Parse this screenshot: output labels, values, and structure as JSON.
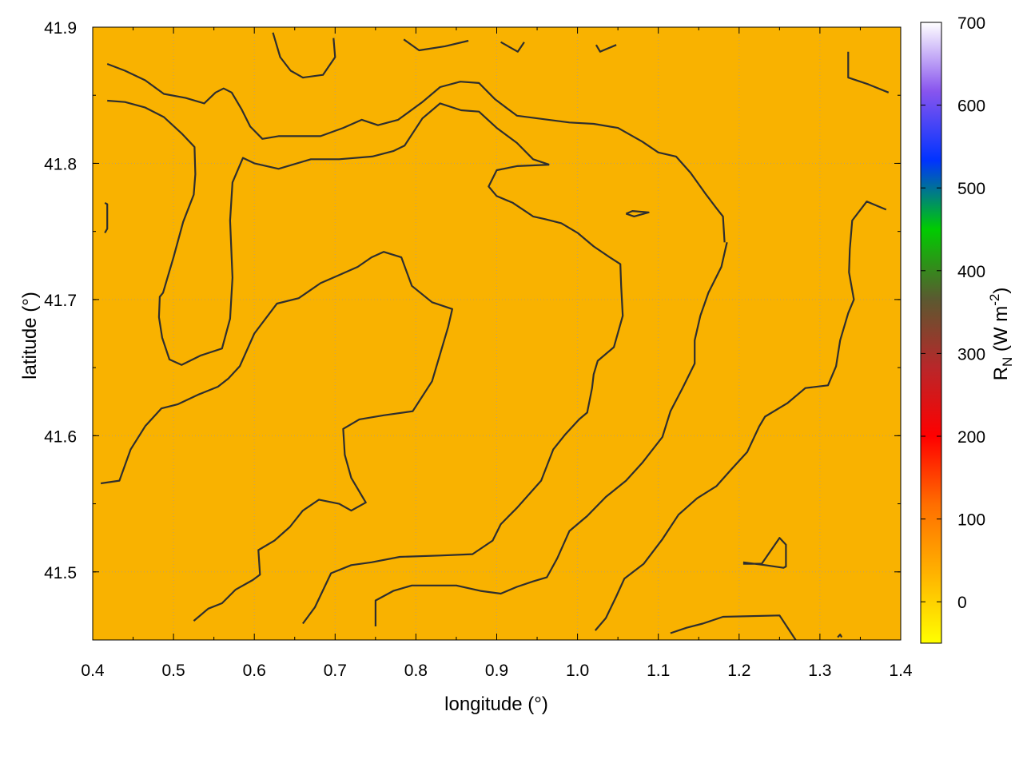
{
  "chart_data": {
    "type": "heatmap",
    "xlabel": "longitude (°)",
    "ylabel": "latitude (°)",
    "xlim": [
      0.4,
      1.4
    ],
    "ylim": [
      41.45,
      41.9
    ],
    "x_ticks": [
      "0.4",
      "0.5",
      "0.6",
      "0.7",
      "0.8",
      "0.9",
      "1.0",
      "1.1",
      "1.2",
      "1.3",
      "1.4"
    ],
    "y_ticks": [
      "41.5",
      "41.6",
      "41.7",
      "41.8",
      "41.9"
    ],
    "grid": true,
    "field_color": "#F9B200",
    "colorbar": {
      "label_main": "R",
      "label_sub": "N",
      "label_unit_pre": " (W m",
      "label_unit_sup": "-2",
      "label_unit_post": ")",
      "range": [
        -50,
        700
      ],
      "ticks": [
        "0",
        "100",
        "200",
        "300",
        "400",
        "500",
        "600",
        "700"
      ],
      "colors": [
        "#FFFF00",
        "#FFB300",
        "#FF6F00",
        "#FF0000",
        "#B8272A",
        "#5A5A30",
        "#00CC00",
        "#0033FF",
        "#8855EE",
        "#FFFFFF"
      ]
    },
    "contours": [
      [
        [
          0.418,
          41.873
        ],
        [
          0.44,
          41.868
        ],
        [
          0.465,
          41.861
        ],
        [
          0.488,
          41.851
        ],
        [
          0.515,
          41.848
        ],
        [
          0.538,
          41.844
        ],
        [
          0.552,
          41.852
        ],
        [
          0.562,
          41.855
        ],
        [
          0.572,
          41.852
        ],
        [
          0.584,
          41.84
        ],
        [
          0.595,
          41.827
        ],
        [
          0.61,
          41.818
        ],
        [
          0.63,
          41.82
        ],
        [
          0.682,
          41.82
        ],
        [
          0.71,
          41.826
        ],
        [
          0.733,
          41.832
        ],
        [
          0.753,
          41.828
        ],
        [
          0.778,
          41.832
        ],
        [
          0.808,
          41.845
        ],
        [
          0.83,
          41.856
        ],
        [
          0.855,
          41.86
        ],
        [
          0.878,
          41.859
        ],
        [
          0.898,
          41.847
        ],
        [
          0.925,
          41.835
        ],
        [
          0.99,
          41.83
        ],
        [
          1.02,
          41.829
        ],
        [
          1.05,
          41.826
        ],
        [
          1.08,
          41.816
        ],
        [
          1.1,
          41.808
        ],
        [
          1.122,
          41.805
        ],
        [
          1.14,
          41.793
        ],
        [
          1.158,
          41.778
        ],
        [
          1.172,
          41.767
        ],
        [
          1.18,
          41.761
        ],
        [
          1.182,
          41.742
        ]
      ],
      [
        [
          0.418,
          41.846
        ],
        [
          0.44,
          41.845
        ],
        [
          0.465,
          41.841
        ],
        [
          0.488,
          41.834
        ],
        [
          0.51,
          41.822
        ],
        [
          0.526,
          41.812
        ],
        [
          0.527,
          41.792
        ],
        [
          0.525,
          41.777
        ],
        [
          0.512,
          41.757
        ],
        [
          0.5,
          41.731
        ],
        [
          0.487,
          41.705
        ],
        [
          0.483,
          41.702
        ],
        [
          0.482,
          41.687
        ],
        [
          0.486,
          41.672
        ],
        [
          0.495,
          41.656
        ],
        [
          0.51,
          41.652
        ],
        [
          0.534,
          41.659
        ],
        [
          0.56,
          41.664
        ],
        [
          0.57,
          41.686
        ],
        [
          0.573,
          41.716
        ],
        [
          0.57,
          41.758
        ],
        [
          0.573,
          41.786
        ],
        [
          0.586,
          41.804
        ],
        [
          0.6,
          41.8
        ],
        [
          0.63,
          41.796
        ],
        [
          0.67,
          41.803
        ],
        [
          0.705,
          41.803
        ],
        [
          0.746,
          41.805
        ],
        [
          0.772,
          41.809
        ],
        [
          0.786,
          41.813
        ],
        [
          0.808,
          41.833
        ],
        [
          0.83,
          41.844
        ],
        [
          0.856,
          41.839
        ],
        [
          0.878,
          41.838
        ],
        [
          0.9,
          41.826
        ],
        [
          0.925,
          41.815
        ],
        [
          0.945,
          41.803
        ],
        [
          0.965,
          41.799
        ]
      ],
      [
        [
          0.965,
          41.799
        ],
        [
          0.925,
          41.798
        ],
        [
          0.9,
          41.795
        ],
        [
          0.89,
          41.783
        ],
        [
          0.9,
          41.776
        ],
        [
          0.92,
          41.771
        ],
        [
          0.935,
          41.765
        ],
        [
          0.945,
          41.761
        ],
        [
          0.96,
          41.759
        ],
        [
          0.98,
          41.756
        ],
        [
          1.0,
          41.749
        ],
        [
          1.02,
          41.739
        ],
        [
          1.04,
          41.731
        ],
        [
          1.053,
          41.726
        ],
        [
          1.054,
          41.71
        ],
        [
          1.056,
          41.688
        ],
        [
          1.045,
          41.665
        ],
        [
          1.025,
          41.655
        ],
        [
          1.02,
          41.645
        ],
        [
          1.018,
          41.635
        ],
        [
          1.012,
          41.617
        ],
        [
          1.002,
          41.612
        ],
        [
          0.985,
          41.601
        ],
        [
          0.97,
          41.59
        ],
        [
          0.955,
          41.567
        ],
        [
          0.925,
          41.547
        ],
        [
          0.905,
          41.535
        ],
        [
          0.895,
          41.523
        ],
        [
          0.87,
          41.513
        ],
        [
          0.83,
          41.512
        ],
        [
          0.78,
          41.511
        ],
        [
          0.745,
          41.507
        ],
        [
          0.72,
          41.505
        ],
        [
          0.695,
          41.499
        ],
        [
          0.675,
          41.474
        ],
        [
          0.66,
          41.462
        ]
      ],
      [
        [
          0.41,
          41.565
        ],
        [
          0.433,
          41.567
        ],
        [
          0.447,
          41.59
        ],
        [
          0.465,
          41.607
        ],
        [
          0.485,
          41.62
        ],
        [
          0.505,
          41.623
        ],
        [
          0.53,
          41.63
        ],
        [
          0.555,
          41.636
        ],
        [
          0.568,
          41.642
        ],
        [
          0.582,
          41.651
        ],
        [
          0.6,
          41.675
        ],
        [
          0.628,
          41.697
        ],
        [
          0.655,
          41.701
        ],
        [
          0.682,
          41.712
        ],
        [
          0.705,
          41.718
        ],
        [
          0.728,
          41.724
        ],
        [
          0.745,
          41.731
        ],
        [
          0.76,
          41.735
        ],
        [
          0.782,
          41.731
        ],
        [
          0.795,
          41.71
        ],
        [
          0.82,
          41.698
        ],
        [
          0.845,
          41.693
        ],
        [
          0.84,
          41.68
        ],
        [
          0.82,
          41.64
        ],
        [
          0.796,
          41.618
        ],
        [
          0.76,
          41.615
        ],
        [
          0.73,
          41.612
        ],
        [
          0.71,
          41.605
        ],
        [
          0.712,
          41.586
        ],
        [
          0.72,
          41.569
        ],
        [
          0.738,
          41.551
        ],
        [
          0.72,
          41.545
        ],
        [
          0.705,
          41.55
        ],
        [
          0.68,
          41.553
        ],
        [
          0.66,
          41.545
        ],
        [
          0.644,
          41.533
        ],
        [
          0.625,
          41.523
        ],
        [
          0.605,
          41.516
        ],
        [
          0.607,
          41.498
        ],
        [
          0.598,
          41.494
        ],
        [
          0.577,
          41.487
        ],
        [
          0.56,
          41.477
        ],
        [
          0.543,
          41.473
        ],
        [
          0.525,
          41.464
        ]
      ],
      [
        [
          0.75,
          41.46
        ],
        [
          0.75,
          41.479
        ],
        [
          0.772,
          41.486
        ],
        [
          0.795,
          41.49
        ],
        [
          0.85,
          41.49
        ],
        [
          0.88,
          41.486
        ],
        [
          0.905,
          41.484
        ],
        [
          0.925,
          41.489
        ],
        [
          0.945,
          41.493
        ],
        [
          0.962,
          41.496
        ],
        [
          0.975,
          41.51
        ],
        [
          0.99,
          41.53
        ],
        [
          1.012,
          41.541
        ],
        [
          1.035,
          41.555
        ],
        [
          1.06,
          41.567
        ],
        [
          1.08,
          41.58
        ],
        [
          1.105,
          41.599
        ],
        [
          1.115,
          41.618
        ],
        [
          1.13,
          41.635
        ],
        [
          1.145,
          41.653
        ],
        [
          1.145,
          41.67
        ],
        [
          1.152,
          41.688
        ],
        [
          1.162,
          41.705
        ],
        [
          1.178,
          41.724
        ],
        [
          1.185,
          41.742
        ]
      ],
      [
        [
          1.022,
          41.457
        ],
        [
          1.035,
          41.466
        ],
        [
          1.048,
          41.482
        ],
        [
          1.058,
          41.495
        ],
        [
          1.082,
          41.506
        ],
        [
          1.105,
          41.524
        ],
        [
          1.125,
          41.542
        ],
        [
          1.148,
          41.554
        ],
        [
          1.172,
          41.563
        ],
        [
          1.19,
          41.575
        ],
        [
          1.21,
          41.588
        ],
        [
          1.225,
          41.607
        ],
        [
          1.232,
          41.614
        ],
        [
          1.26,
          41.624
        ],
        [
          1.282,
          41.635
        ],
        [
          1.31,
          41.637
        ],
        [
          1.32,
          41.651
        ],
        [
          1.325,
          41.67
        ],
        [
          1.335,
          41.69
        ],
        [
          1.342,
          41.7
        ],
        [
          1.336,
          41.72
        ],
        [
          1.337,
          41.737
        ],
        [
          1.34,
          41.758
        ],
        [
          1.358,
          41.772
        ],
        [
          1.382,
          41.766
        ]
      ],
      [
        [
          1.115,
          41.455
        ],
        [
          1.135,
          41.459
        ],
        [
          1.155,
          41.462
        ],
        [
          1.18,
          41.467
        ],
        [
          1.25,
          41.468
        ],
        [
          1.27,
          41.45
        ]
      ],
      [
        [
          1.205,
          41.506
        ],
        [
          1.228,
          41.506
        ],
        [
          1.25,
          41.525
        ],
        [
          1.258,
          41.52
        ],
        [
          1.258,
          41.504
        ],
        [
          1.255,
          41.503
        ],
        [
          1.232,
          41.505
        ],
        [
          1.205,
          41.507
        ]
      ],
      [
        [
          1.06,
          41.763
        ],
        [
          1.068,
          41.765
        ],
        [
          1.088,
          41.764
        ],
        [
          1.07,
          41.761
        ],
        [
          1.06,
          41.763
        ]
      ],
      [
        [
          0.623,
          41.896
        ],
        [
          0.632,
          41.878
        ],
        [
          0.645,
          41.868
        ],
        [
          0.66,
          41.863
        ],
        [
          0.685,
          41.865
        ],
        [
          0.7,
          41.878
        ],
        [
          0.698,
          41.892
        ]
      ],
      [
        [
          0.785,
          41.891
        ],
        [
          0.804,
          41.883
        ],
        [
          0.836,
          41.886
        ],
        [
          0.865,
          41.89
        ]
      ],
      [
        [
          0.905,
          41.889
        ],
        [
          0.926,
          41.882
        ],
        [
          0.934,
          41.889
        ]
      ],
      [
        [
          1.023,
          41.887
        ],
        [
          1.028,
          41.882
        ],
        [
          1.048,
          41.887
        ]
      ],
      [
        [
          1.335,
          41.882
        ],
        [
          1.335,
          41.863
        ],
        [
          1.36,
          41.858
        ],
        [
          1.385,
          41.852
        ]
      ],
      [
        [
          0.415,
          41.771
        ],
        [
          0.418,
          41.77
        ],
        [
          0.418,
          41.752
        ],
        [
          0.415,
          41.749
        ]
      ],
      [
        [
          1.322,
          41.452
        ],
        [
          1.325,
          41.454
        ],
        [
          1.327,
          41.452
        ]
      ]
    ]
  }
}
